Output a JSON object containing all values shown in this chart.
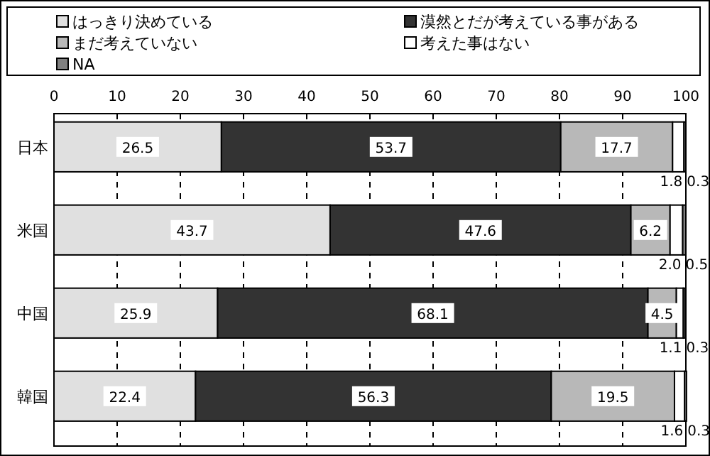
{
  "chart_data": {
    "type": "bar",
    "orientation": "horizontal",
    "stacked": true,
    "categories": [
      "日本",
      "米国",
      "中国",
      "韓国"
    ],
    "series": [
      {
        "name": "はっきり決めている",
        "color": "#e0e0e0",
        "values": [
          26.5,
          43.7,
          25.9,
          22.4
        ],
        "value_labels": [
          "26.5",
          "43.7",
          "25.9",
          "22.4"
        ]
      },
      {
        "name": "漠然とだが考えている事がある",
        "color": "#333333",
        "values": [
          53.7,
          47.6,
          68.1,
          56.3
        ],
        "value_labels": [
          "53.7",
          "47.6",
          "68.1",
          "56.3"
        ]
      },
      {
        "name": "まだ考えていない",
        "color": "#b8b8b8",
        "values": [
          17.7,
          6.2,
          4.5,
          19.5
        ],
        "value_labels": [
          "17.7",
          "6.2",
          "4.5",
          "19.5"
        ]
      },
      {
        "name": "考えた事はない",
        "color": "#ffffff",
        "values": [
          1.8,
          2.0,
          1.1,
          1.6
        ],
        "value_labels": [
          "1.8",
          "2.0",
          "1.1",
          "1.6"
        ]
      },
      {
        "name": "NA",
        "color": "#808080",
        "values": [
          0.3,
          0.5,
          0.3,
          0.3
        ],
        "value_labels": [
          "0.3",
          "0.5",
          "0.3",
          "0.3"
        ]
      }
    ],
    "xlim": [
      0,
      100
    ],
    "xticks": [
      0,
      10,
      20,
      30,
      40,
      50,
      60,
      70,
      80,
      90,
      100
    ],
    "grid": "x",
    "legend": "top"
  }
}
